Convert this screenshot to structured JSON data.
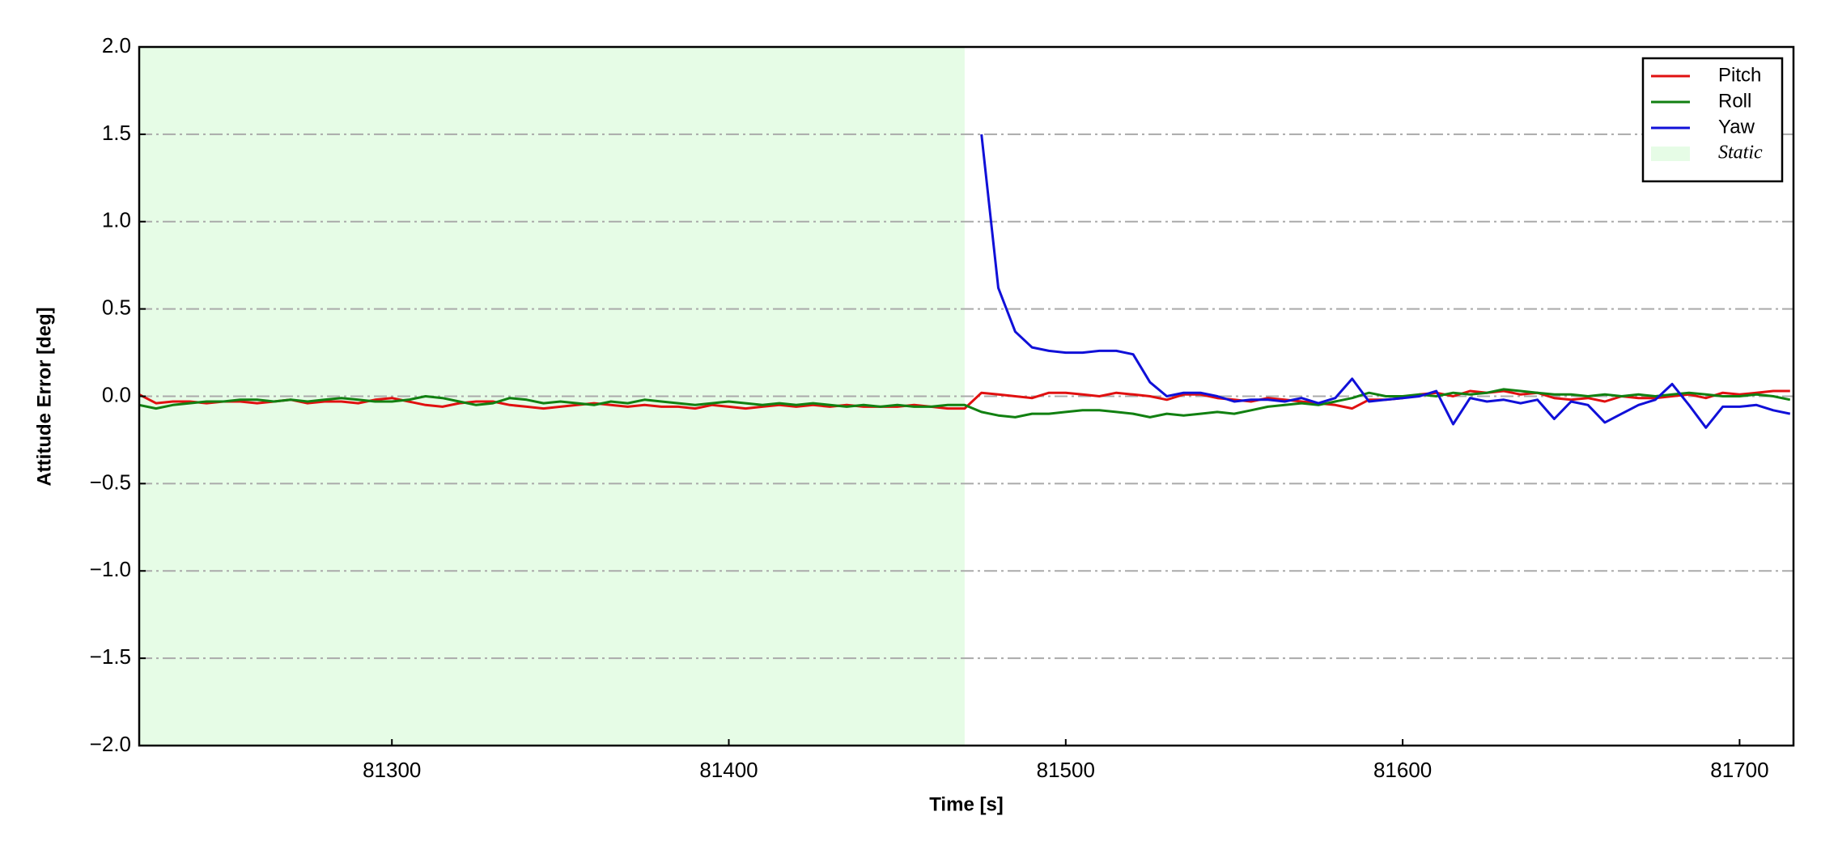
{
  "chart_data": {
    "type": "line",
    "xlabel": "Time [s]",
    "ylabel": "Attitude Error [deg]",
    "xlim": [
      81225,
      81716
    ],
    "xticks": [
      81300,
      81400,
      81500,
      81600,
      81700
    ],
    "ylim": [
      -2,
      2
    ],
    "yticks": [
      {
        "value": -2,
        "label": "−2.0"
      },
      {
        "value": -1.5,
        "label": "−1.5"
      },
      {
        "value": -1,
        "label": "−1.0"
      },
      {
        "value": -0.5,
        "label": "−0.5"
      },
      {
        "value": 0,
        "label": "0.0"
      },
      0.5,
      {
        "value": 1,
        "label": "1.0"
      },
      1.5,
      {
        "value": 2,
        "label": "2.0"
      }
    ],
    "grid": true,
    "legend_loc": "upper right",
    "shade": {
      "name": "Static",
      "color": "#e6fce6",
      "xrange": [
        81225,
        81470
      ]
    },
    "x": [
      81225,
      81230,
      81235,
      81240,
      81245,
      81250,
      81255,
      81260,
      81265,
      81270,
      81275,
      81280,
      81285,
      81290,
      81295,
      81300,
      81305,
      81310,
      81315,
      81320,
      81325,
      81330,
      81335,
      81340,
      81345,
      81350,
      81355,
      81360,
      81365,
      81370,
      81375,
      81380,
      81385,
      81390,
      81395,
      81400,
      81405,
      81410,
      81415,
      81420,
      81425,
      81430,
      81435,
      81440,
      81445,
      81450,
      81455,
      81460,
      81465,
      81470,
      81475,
      81480,
      81485,
      81490,
      81495,
      81500,
      81505,
      81510,
      81515,
      81520,
      81525,
      81530,
      81535,
      81540,
      81545,
      81550,
      81555,
      81560,
      81565,
      81570,
      81575,
      81580,
      81585,
      81590,
      81595,
      81600,
      81605,
      81610,
      81615,
      81620,
      81625,
      81630,
      81635,
      81640,
      81645,
      81650,
      81655,
      81660,
      81665,
      81670,
      81675,
      81680,
      81685,
      81690,
      81695,
      81700,
      81705,
      81710,
      81715
    ],
    "series": [
      {
        "name": "Pitch",
        "color": "#e01010",
        "values": [
          0.01,
          -0.04,
          -0.03,
          -0.03,
          -0.04,
          -0.03,
          -0.03,
          -0.04,
          -0.03,
          -0.02,
          -0.04,
          -0.03,
          -0.03,
          -0.04,
          -0.02,
          -0.01,
          -0.03,
          -0.05,
          -0.06,
          -0.04,
          -0.03,
          -0.03,
          -0.05,
          -0.06,
          -0.07,
          -0.06,
          -0.05,
          -0.04,
          -0.05,
          -0.06,
          -0.05,
          -0.06,
          -0.06,
          -0.07,
          -0.05,
          -0.06,
          -0.07,
          -0.06,
          -0.05,
          -0.06,
          -0.05,
          -0.06,
          -0.05,
          -0.06,
          -0.06,
          -0.06,
          -0.05,
          -0.06,
          -0.07,
          -0.07,
          0.02,
          0.01,
          0.0,
          -0.01,
          0.02,
          0.02,
          0.01,
          0.0,
          0.02,
          0.01,
          0.0,
          -0.02,
          0.01,
          0.01,
          -0.01,
          -0.02,
          -0.03,
          -0.01,
          -0.02,
          -0.03,
          -0.04,
          -0.05,
          -0.07,
          -0.02,
          -0.02,
          -0.01,
          0.01,
          0.02,
          0.0,
          0.03,
          0.02,
          0.03,
          0.01,
          0.02,
          -0.01,
          -0.02,
          -0.01,
          -0.03,
          0.0,
          -0.01,
          -0.01,
          0.0,
          0.01,
          -0.01,
          0.02,
          0.01,
          0.02,
          0.03,
          0.03
        ]
      },
      {
        "name": "Roll",
        "color": "#118011",
        "values": [
          -0.05,
          -0.07,
          -0.05,
          -0.04,
          -0.03,
          -0.03,
          -0.02,
          -0.02,
          -0.03,
          -0.02,
          -0.03,
          -0.02,
          -0.01,
          -0.02,
          -0.03,
          -0.03,
          -0.02,
          0.0,
          -0.01,
          -0.03,
          -0.05,
          -0.04,
          -0.01,
          -0.02,
          -0.04,
          -0.03,
          -0.04,
          -0.05,
          -0.03,
          -0.04,
          -0.02,
          -0.03,
          -0.04,
          -0.05,
          -0.04,
          -0.03,
          -0.04,
          -0.05,
          -0.04,
          -0.05,
          -0.04,
          -0.05,
          -0.06,
          -0.05,
          -0.06,
          -0.05,
          -0.06,
          -0.06,
          -0.05,
          -0.05,
          -0.09,
          -0.11,
          -0.12,
          -0.1,
          -0.1,
          -0.09,
          -0.08,
          -0.08,
          -0.09,
          -0.1,
          -0.12,
          -0.1,
          -0.11,
          -0.1,
          -0.09,
          -0.1,
          -0.08,
          -0.06,
          -0.05,
          -0.04,
          -0.05,
          -0.03,
          -0.01,
          0.02,
          0.0,
          0.0,
          0.01,
          0.0,
          0.02,
          0.01,
          0.02,
          0.04,
          0.03,
          0.02,
          0.01,
          0.01,
          0.0,
          0.01,
          0.0,
          0.01,
          0.0,
          0.01,
          0.02,
          0.01,
          0.0,
          0.0,
          0.01,
          0.0,
          -0.02
        ]
      },
      {
        "name": "Yaw",
        "color": "#1010d8",
        "values": [
          null,
          null,
          null,
          null,
          null,
          null,
          null,
          null,
          null,
          null,
          null,
          null,
          null,
          null,
          null,
          null,
          null,
          null,
          null,
          null,
          null,
          null,
          null,
          null,
          null,
          null,
          null,
          null,
          null,
          null,
          null,
          null,
          null,
          null,
          null,
          null,
          null,
          null,
          null,
          null,
          null,
          null,
          null,
          null,
          null,
          null,
          null,
          null,
          null,
          null,
          1.5,
          0.62,
          0.37,
          0.28,
          0.26,
          0.25,
          0.25,
          0.26,
          0.26,
          0.24,
          0.08,
          0.0,
          0.02,
          0.02,
          0.0,
          -0.03,
          -0.02,
          -0.02,
          -0.03,
          -0.01,
          -0.04,
          -0.01,
          0.1,
          -0.03,
          -0.02,
          -0.01,
          0.0,
          0.03,
          -0.16,
          -0.01,
          -0.03,
          -0.02,
          -0.04,
          -0.02,
          -0.13,
          -0.03,
          -0.05,
          -0.15,
          -0.1,
          -0.05,
          -0.02,
          0.07,
          -0.05,
          -0.18,
          -0.06,
          -0.06,
          -0.05,
          -0.08,
          -0.1
        ]
      }
    ]
  }
}
